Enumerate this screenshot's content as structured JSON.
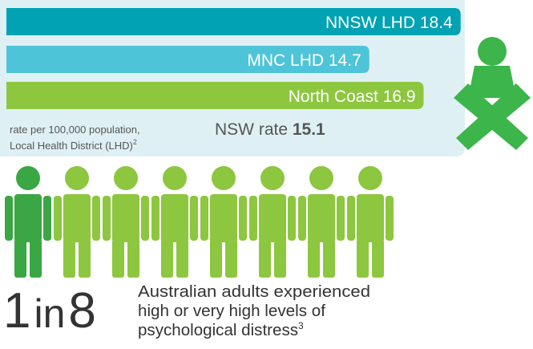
{
  "chart_data": {
    "type": "bar",
    "categories": [
      "NNSW LHD",
      "MNC LHD",
      "North Coast"
    ],
    "values": [
      18.4,
      14.7,
      16.9
    ],
    "colors": [
      "#00a2b4",
      "#4ec4d8",
      "#8dc63f"
    ],
    "note": [
      "rate per 100,000 population,",
      "Local Health District (LHD)"
    ],
    "note_ref": "2",
    "reference": {
      "label": "NSW rate",
      "value": 15.1
    }
  },
  "fact": {
    "numerator": 1,
    "word": "in",
    "denominator": 8,
    "lines": [
      "Australian adults experienced",
      "high or very high levels of",
      "psychological distress"
    ],
    "ref": "3",
    "highlight_color": "#3aa744",
    "figure_color": "#8dc63f"
  }
}
